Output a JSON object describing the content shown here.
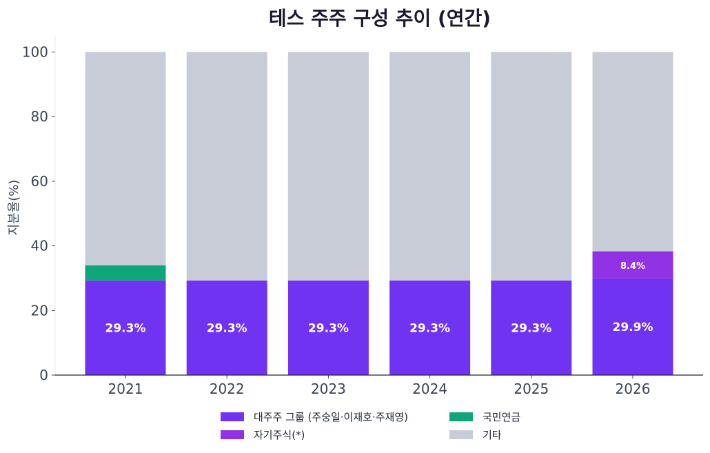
{
  "chart_data": {
    "type": "bar",
    "stacked": true,
    "title": "테스 주주 구성 추이 (연간)",
    "xlabel": "",
    "ylabel": "지분율(%)",
    "ylim": [
      0,
      105
    ],
    "yticks": [
      0,
      20,
      40,
      60,
      80,
      100
    ],
    "grid": false,
    "legend_position": "bottom",
    "categories": [
      "2021",
      "2022",
      "2023",
      "2024",
      "2025",
      "2026"
    ],
    "series": [
      {
        "name": "대주주 그룹 (주숭일·이재호·주재영)",
        "color": "#7033F2",
        "values": [
          29.3,
          29.3,
          29.3,
          29.3,
          29.3,
          29.9
        ],
        "labels": [
          "29.3%",
          "29.3%",
          "29.3%",
          "29.3%",
          "29.3%",
          "29.9%"
        ]
      },
      {
        "name": "국민연금",
        "color": "#0FA67A",
        "values": [
          4.7,
          0,
          0,
          0,
          0,
          0
        ],
        "labels": [
          "",
          "",
          "",
          "",
          "",
          ""
        ]
      },
      {
        "name": "자기주식(*)",
        "color": "#9232E5",
        "values": [
          0,
          0,
          0,
          0,
          0,
          8.4
        ],
        "labels": [
          "",
          "",
          "",
          "",
          "",
          "8.4%"
        ]
      },
      {
        "name": "기타",
        "color": "#C8CCD6",
        "values": [
          66.0,
          70.7,
          70.7,
          70.7,
          70.7,
          61.7
        ],
        "labels": [
          "",
          "",
          "",
          "",
          "",
          ""
        ]
      }
    ],
    "legend_order": [
      0,
      2,
      1,
      3
    ]
  }
}
